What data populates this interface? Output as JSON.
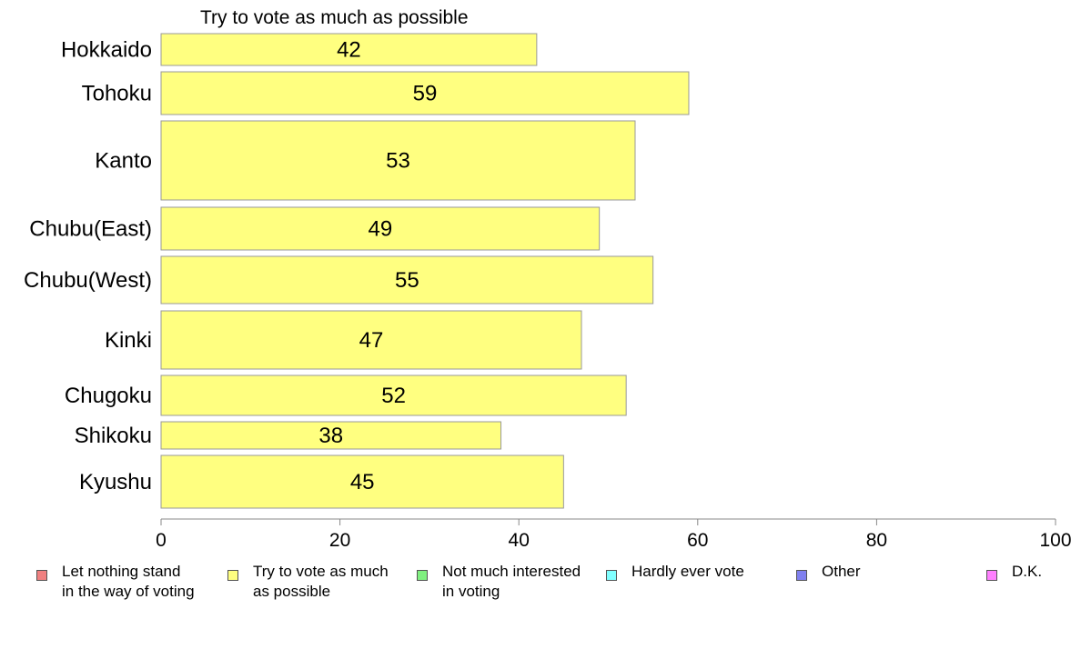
{
  "chart_data": {
    "type": "bar",
    "orientation": "horizontal",
    "title": "Try to vote as much as possible",
    "categories": [
      "Hokkaido",
      "Tohoku",
      "Kanto",
      "Chubu(East)",
      "Chubu(West)",
      "Kinki",
      "Chugoku",
      "Shikoku",
      "Kyushu"
    ],
    "values": [
      42,
      59,
      53,
      49,
      55,
      47,
      52,
      38,
      45
    ],
    "data_labels": [
      "42",
      "59",
      "53",
      "49",
      "55",
      "47",
      "52",
      "38",
      "45"
    ],
    "xlim": [
      0,
      100
    ],
    "x_ticks": [
      0,
      20,
      40,
      60,
      80,
      100
    ],
    "x_tick_labels": [
      "0",
      "20",
      "40",
      "60",
      "80",
      "100"
    ],
    "bar_color": "#ffff80",
    "grid": false,
    "legend_position": "bottom"
  },
  "legend": {
    "items": [
      {
        "label": "Let nothing stand\nin the way of voting",
        "color": "#f08080"
      },
      {
        "label": "Try to vote as much\nas possible",
        "color": "#ffff80"
      },
      {
        "label": "Not much interested\nin voting",
        "color": "#80f080"
      },
      {
        "label": "Hardly ever vote",
        "color": "#80ffff"
      },
      {
        "label": "Other",
        "color": "#8080f0"
      },
      {
        "label": "D.K.",
        "color": "#ff80ff"
      }
    ]
  }
}
